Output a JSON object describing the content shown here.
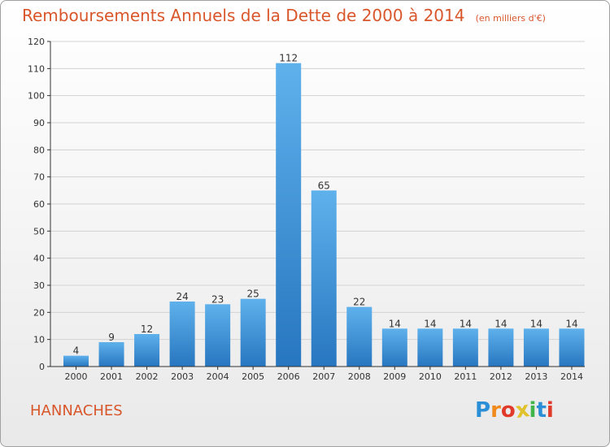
{
  "chart_data": {
    "type": "bar",
    "title": "Remboursements Annuels de la Dette de 2000 à 2014",
    "subtitle": "(en milliers d'€)",
    "categories": [
      "2000",
      "2001",
      "2002",
      "2003",
      "2004",
      "2005",
      "2006",
      "2007",
      "2008",
      "2009",
      "2010",
      "2011",
      "2012",
      "2013",
      "2014"
    ],
    "values": [
      4,
      9,
      12,
      24,
      23,
      25,
      112,
      65,
      22,
      14,
      14,
      14,
      14,
      14,
      14
    ],
    "xlabel": "",
    "ylabel": "",
    "ylim": [
      0,
      120
    ],
    "yticks": [
      0,
      10,
      20,
      30,
      40,
      50,
      60,
      70,
      80,
      90,
      100,
      110,
      120
    ],
    "grid": true,
    "bar_color": "#3d92d8",
    "data_labels": true
  },
  "place_name": "HANNACHES",
  "logo": {
    "text": "Proxiti",
    "letters": [
      "P",
      "r",
      "o",
      "x",
      "i",
      "t",
      "i"
    ],
    "colors": [
      "#2a8fd6",
      "#f08a1c",
      "#e23a2a",
      "#e2c22a",
      "#3fb54a",
      "#2a8fd6",
      "#e23a2a"
    ]
  },
  "colors": {
    "title": "#d9562b",
    "bar_light": "#5fb1ec",
    "bar_dark": "#2776c0",
    "grid": "#d2d2d2",
    "axis": "#333333"
  }
}
